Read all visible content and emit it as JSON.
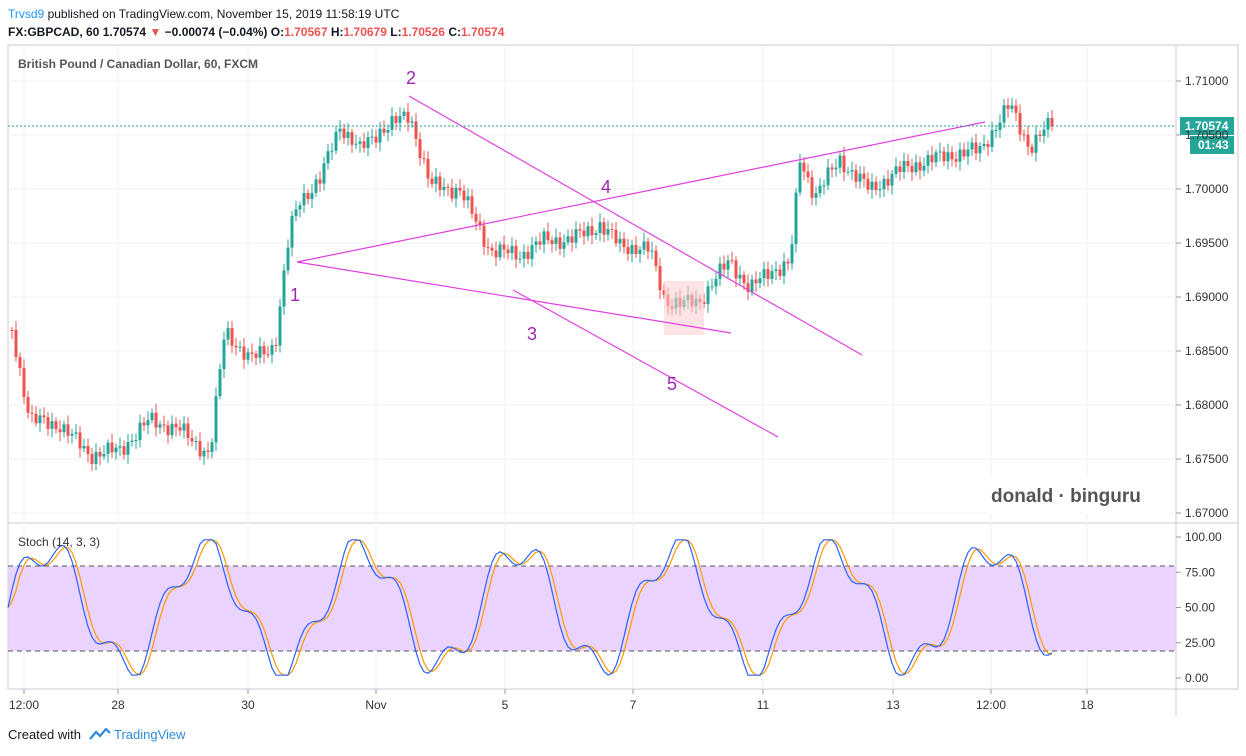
{
  "header": {
    "user": "Trvsd9",
    "published": "published on TradingView.com, November 15, 2019 11:58:19 UTC",
    "symbol_line_prefix": "FX:GBPCAD, 60",
    "last": "1.70574",
    "change_arrow": "▼",
    "change": "−0.00074 (−0.04%)",
    "o_label": "O:",
    "o": "1.70567",
    "h_label": "H:",
    "h": "1.70679",
    "l_label": "L:",
    "l": "1.70526",
    "c_label": "C:",
    "c": "1.70574"
  },
  "chart": {
    "title": "British Pound / Canadian Dollar, 60, FXCM",
    "price_ticks": [
      "1.71000",
      "1.70500",
      "1.70000",
      "1.69500",
      "1.69000",
      "1.68500",
      "1.68000",
      "1.67500",
      "1.67000"
    ],
    "current_price": "1.70574",
    "countdown": "01:43",
    "watermark": "donald · binguru",
    "wave_labels": [
      "1",
      "2",
      "3",
      "4",
      "5"
    ],
    "stoch_title": "Stoch (14, 3, 3)",
    "stoch_ticks": [
      "100.00",
      "75.00",
      "50.00",
      "25.00",
      "0.00"
    ],
    "time_ticks": [
      "12:00",
      "28",
      "30",
      "Nov",
      "5",
      "7",
      "11",
      "13",
      "12:00",
      "18"
    ]
  },
  "footer": {
    "created_with": "Created with",
    "brand": "TradingView"
  },
  "colors": {
    "up": "#26a69a",
    "down": "#ef5350",
    "wave_lines": "#e040e0",
    "wave_labels": "#9c27b0",
    "stoch_band": "#e6ccff",
    "stoch_k": "#2962ff",
    "stoch_d": "#ff9800",
    "price_label_bg": "#26a69a"
  },
  "chart_data": {
    "type": "line",
    "x": [
      "Oct 27 12:00",
      "Oct 28",
      "Oct 29",
      "Oct 30",
      "Oct 31",
      "Nov 1",
      "Nov 4",
      "Nov 5",
      "Nov 6",
      "Nov 7",
      "Nov 8",
      "Nov 11",
      "Nov 12",
      "Nov 13",
      "Nov 14",
      "Nov 15"
    ],
    "series": [
      {
        "values": [
          1.688,
          1.676,
          1.675,
          1.683,
          1.694,
          1.707,
          1.702,
          1.697,
          1.6955,
          1.692,
          1.69,
          1.702,
          1.701,
          1.702,
          1.707,
          1.7057
        ]
      }
    ],
    "ylim": [
      1.667,
      1.711
    ],
    "stochastic": {
      "title": "Stoch (14, 3, 3)",
      "ylim": [
        0,
        100
      ],
      "bands": [
        20,
        80
      ]
    }
  }
}
